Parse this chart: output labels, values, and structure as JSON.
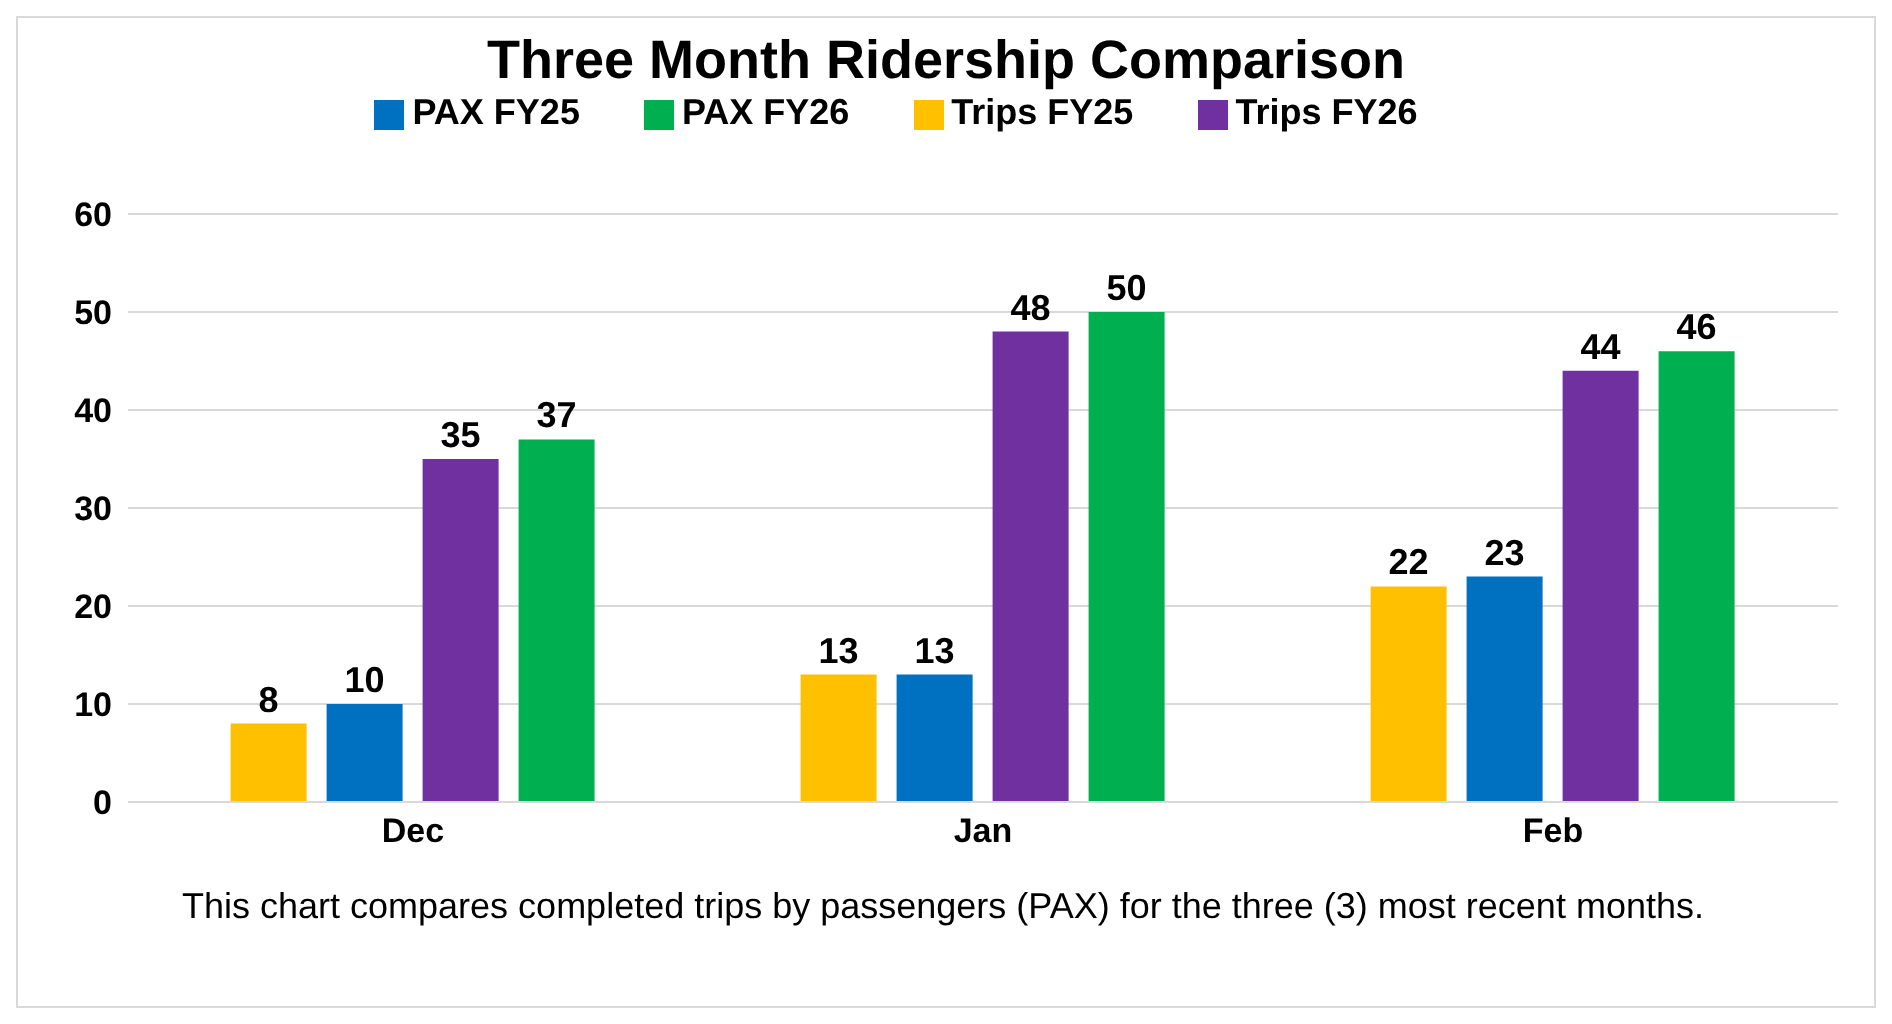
{
  "chart_data": {
    "type": "bar",
    "title": "Three Month Ridership Comparison",
    "categories": [
      "Dec",
      "Jan",
      "Feb"
    ],
    "series": [
      {
        "name": "Trips FY25",
        "color": "#ffc000",
        "values": [
          8,
          13,
          22
        ]
      },
      {
        "name": "PAX FY25",
        "color": "#0070c0",
        "values": [
          10,
          13,
          23
        ]
      },
      {
        "name": "Trips FY26",
        "color": "#7030a0",
        "values": [
          35,
          48,
          44
        ]
      },
      {
        "name": "PAX FY26",
        "color": "#00b050",
        "values": [
          37,
          50,
          46
        ]
      }
    ],
    "ylim": [
      0,
      60
    ],
    "yticks": [
      0,
      10,
      20,
      30,
      40,
      50,
      60
    ],
    "grid": "y",
    "legend": "top",
    "data_labels": true,
    "annotations": [
      "This chart compares completed trips by passengers (PAX) for the three (3) most recent months."
    ]
  }
}
